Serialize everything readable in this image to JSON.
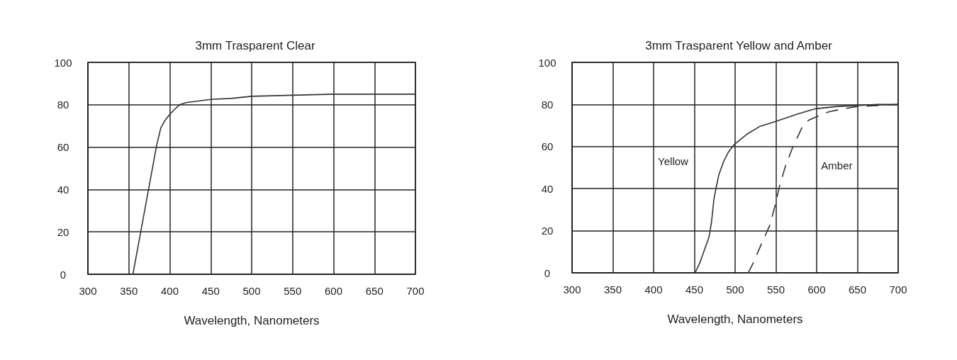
{
  "chart_data": [
    {
      "type": "line",
      "title": "3mm Trasparent Clear",
      "xlabel": "Wavelength, Nanometers",
      "xlim": [
        300,
        700
      ],
      "xticks": [
        300,
        350,
        400,
        450,
        500,
        550,
        600,
        650,
        700
      ],
      "ylim": [
        0,
        100
      ],
      "yticks": [
        0,
        20,
        40,
        60,
        80,
        100
      ],
      "grid": true,
      "line_style": "solid",
      "series": [
        {
          "color": "#333333",
          "x": [
            355,
            365,
            375,
            384,
            389,
            394,
            399,
            405,
            412,
            420,
            430,
            450,
            475,
            500,
            550,
            600,
            650,
            700
          ],
          "values": [
            0,
            21,
            42,
            61,
            69,
            72.5,
            75,
            77.5,
            80,
            81,
            81.5,
            82.5,
            83,
            84,
            84.5,
            85,
            85,
            85
          ]
        }
      ]
    },
    {
      "type": "line",
      "title": "3mm Trasparent Yellow and Amber",
      "xlabel": "Wavelength, Nanometers",
      "xlim": [
        300,
        700
      ],
      "xticks": [
        300,
        350,
        400,
        450,
        500,
        550,
        600,
        650,
        700
      ],
      "ylim": [
        0,
        100
      ],
      "yticks": [
        0,
        20,
        40,
        60,
        80,
        100
      ],
      "grid": true,
      "line_style": "solid",
      "series": [
        {
          "name": "Yellow",
          "color": "#333333",
          "x": [
            451,
            457,
            462,
            468,
            471,
            474,
            477,
            480,
            486,
            492,
            499,
            507,
            515,
            530,
            550,
            577,
            599,
            624,
            649,
            675,
            700
          ],
          "values": [
            0,
            5,
            10.5,
            17,
            24,
            35,
            41,
            46.5,
            53,
            57.5,
            61,
            63.5,
            66,
            69.5,
            72,
            75.5,
            78,
            79,
            79.5,
            80,
            80
          ]
        },
        {
          "name": "Amber",
          "color": "#333333",
          "line_style": "dashed",
          "x": [
            516,
            522,
            532,
            543,
            549,
            555,
            562,
            571,
            582,
            590,
            602,
            615,
            627,
            649,
            675,
            700
          ],
          "values": [
            0,
            4.5,
            13.5,
            23,
            32,
            42,
            51,
            60,
            69,
            72.5,
            74.5,
            76.5,
            77.5,
            79,
            79.5,
            80
          ]
        }
      ]
    }
  ]
}
